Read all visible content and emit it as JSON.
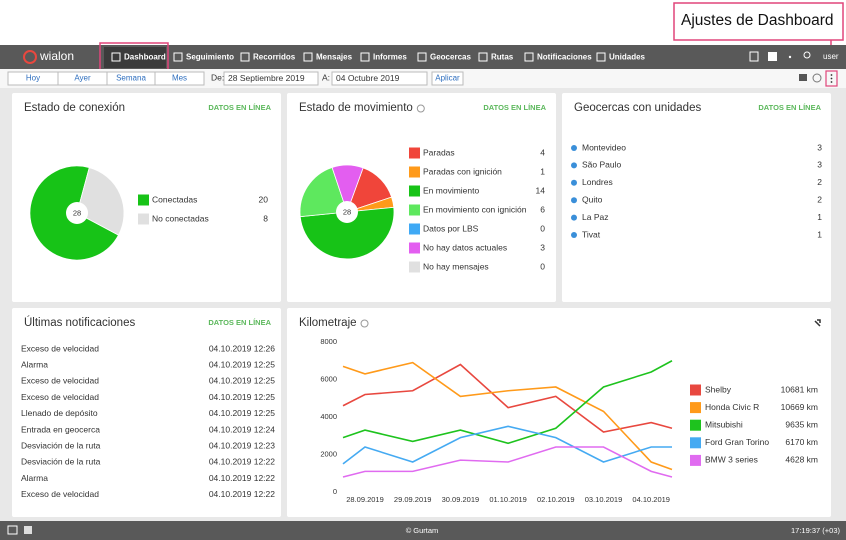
{
  "callout": "Ajustes de Dashboard",
  "nav": {
    "logo": "wialon",
    "items": [
      "Dashboard",
      "Seguimiento",
      "Recorridos",
      "Mensajes",
      "Informes",
      "Geocercas",
      "Rutas",
      "Notificaciones",
      "Unidades"
    ],
    "user": "user"
  },
  "toolbar": {
    "periods": [
      "Hoy",
      "Ayer",
      "Semana",
      "Mes"
    ],
    "from_label": "De:",
    "from": "28 Septiembre 2019",
    "to_label": "A:",
    "to": "04 Octubre 2019",
    "apply": "Aplicar"
  },
  "chart_data": [
    {
      "type": "pie",
      "title": "Estado de conexión",
      "badge": "DATOS EN LÍNEA",
      "center": 28,
      "categories": [
        "Conectadas",
        "No conectadas"
      ],
      "values": [
        20,
        8
      ],
      "colors": [
        "#17c317",
        "#e0e0e0"
      ]
    },
    {
      "type": "pie",
      "title": "Estado de movimiento",
      "badge": "DATOS EN LÍNEA",
      "center": 28,
      "categories": [
        "Paradas",
        "Paradas con ignición",
        "En movimiento",
        "En movimiento con ignición",
        "Datos por LBS",
        "No hay datos actuales",
        "No hay mensajes"
      ],
      "values": [
        4,
        1,
        14,
        6,
        0,
        3,
        0
      ],
      "colors": [
        "#f0453a",
        "#ff9a1a",
        "#17c317",
        "#5ee85e",
        "#3fa9f5",
        "#e35ef0",
        "#e0e0e0"
      ]
    },
    {
      "type": "line",
      "title": "Kilometraje",
      "categories": [
        null,
        "28.09.2019",
        "29.09.2019",
        "30.09.2019",
        "01.10.2019",
        "02.10.2019",
        "03.10.2019",
        "04.10.2019",
        null
      ],
      "ylim": [
        0,
        8000
      ],
      "yticks": [
        0,
        2000,
        4000,
        6000,
        8000
      ],
      "grid": false,
      "series": [
        {
          "name": "Shelby",
          "color": "#e8483f",
          "total_label": "10681 km",
          "values": [
            4600,
            5200,
            5400,
            6800,
            4500,
            5100,
            3200,
            3700,
            3400
          ]
        },
        {
          "name": "Honda Civic R",
          "color": "#ff9a1a",
          "total_label": "10669 km",
          "values": [
            6700,
            6300,
            6900,
            5100,
            5400,
            5600,
            4300,
            1600,
            1200
          ]
        },
        {
          "name": "Mitsubishi",
          "color": "#1ec31e",
          "total_label": "9635 km",
          "values": [
            2900,
            3300,
            2700,
            3300,
            2600,
            3400,
            5600,
            6400,
            7000
          ]
        },
        {
          "name": "Ford Gran Torino",
          "color": "#45aaf2",
          "total_label": "6170 km",
          "values": [
            1500,
            2400,
            1600,
            2900,
            3500,
            2900,
            1600,
            2400,
            2400
          ]
        },
        {
          "name": "BMW 3 series",
          "color": "#e06bf0",
          "total_label": "4628 km",
          "values": [
            800,
            1100,
            1100,
            1700,
            1600,
            2400,
            2400,
            1100,
            800
          ]
        }
      ]
    }
  ],
  "geofences": {
    "title": "Geocercas con unidades",
    "badge": "DATOS EN LÍNEA",
    "items": [
      {
        "name": "Montevideo",
        "count": 3
      },
      {
        "name": "São Paulo",
        "count": 3
      },
      {
        "name": "Londres",
        "count": 2
      },
      {
        "name": "Quito",
        "count": 2
      },
      {
        "name": "La Paz",
        "count": 1
      },
      {
        "name": "Tivat",
        "count": 1
      }
    ]
  },
  "notifications": {
    "title": "Últimas notificaciones",
    "badge": "DATOS EN LÍNEA",
    "rows": [
      [
        "Exceso de velocidad",
        "04.10.2019 12:26"
      ],
      [
        "Alarma",
        "04.10.2019 12:25"
      ],
      [
        "Exceso de velocidad",
        "04.10.2019 12:25"
      ],
      [
        "Exceso de velocidad",
        "04.10.2019 12:25"
      ],
      [
        "Llenado de depósito",
        "04.10.2019 12:25"
      ],
      [
        "Entrada en geocerca",
        "04.10.2019 12:24"
      ],
      [
        "Desviación de la ruta",
        "04.10.2019 12:23"
      ],
      [
        "Desviación de la ruta",
        "04.10.2019 12:22"
      ],
      [
        "Alarma",
        "04.10.2019 12:22"
      ],
      [
        "Exceso de velocidad",
        "04.10.2019 12:22"
      ]
    ]
  },
  "footer": {
    "copyright": "© Gurtam",
    "clock": "17:19:37 (+03)"
  }
}
